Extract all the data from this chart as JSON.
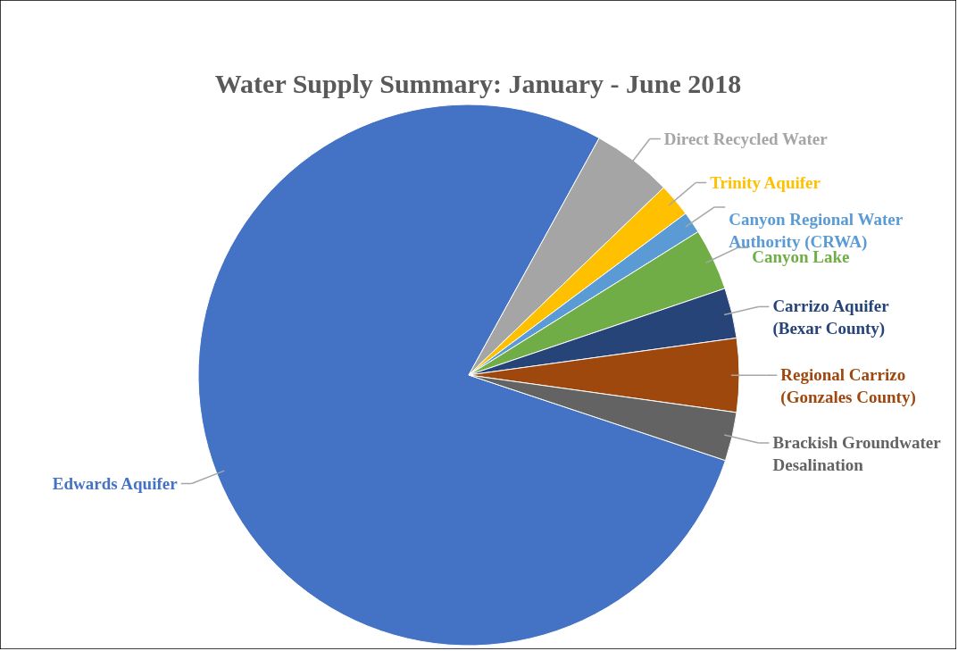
{
  "chart_data": {
    "type": "pie",
    "title": "Water Supply Summary: January - June 2018",
    "categories": [
      "Edwards Aquifer",
      "Direct Recycled Water",
      "Trinity Aquifer",
      "Canyon Regional Water Authority (CRWA)",
      "Canyon Lake",
      "Carrizo Aquifer (Bexar County)",
      "Regional Carrizo (Gonzales County)",
      "Brackish Groundwater Desalination"
    ],
    "values": [
      77.9,
      4.8,
      2.0,
      1.3,
      3.7,
      3.0,
      4.4,
      2.9
    ],
    "colors": [
      "#4472c4",
      "#a5a5a5",
      "#ffc000",
      "#5b9bd5",
      "#70ad47",
      "#264478",
      "#9e480e",
      "#636363"
    ],
    "legend": false
  }
}
